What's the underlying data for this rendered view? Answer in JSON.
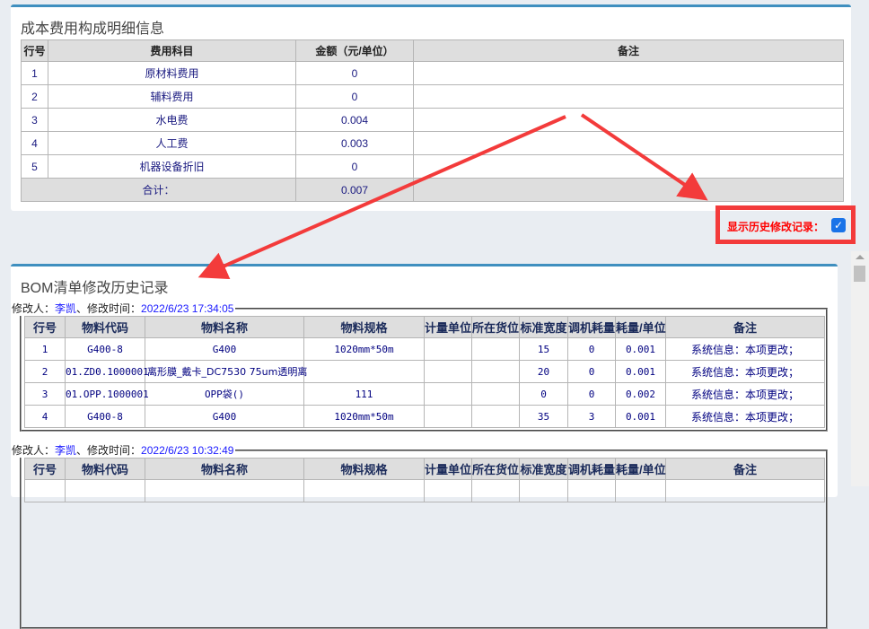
{
  "cost_panel": {
    "title": "成本费用构成明细信息",
    "headers": [
      "行号",
      "费用科目",
      "金额（元/单位）",
      "备注"
    ],
    "rows": [
      {
        "no": "1",
        "item": "原材料费用",
        "amount": "0",
        "note": ""
      },
      {
        "no": "2",
        "item": "辅料费用",
        "amount": "0",
        "note": ""
      },
      {
        "no": "3",
        "item": "水电费",
        "amount": "0.004",
        "note": ""
      },
      {
        "no": "4",
        "item": "人工费",
        "amount": "0.003",
        "note": ""
      },
      {
        "no": "5",
        "item": "机器设备折旧",
        "amount": "0",
        "note": ""
      }
    ],
    "total_label": "合计：",
    "total_amount": "0.007"
  },
  "show_history": {
    "label": "显示历史修改记录：",
    "checked": true,
    "highlight_color": "#f33b3b"
  },
  "bom_panel": {
    "title": "BOM清单修改历史记录",
    "headers": [
      "行号",
      "物料代码",
      "物料名称",
      "物料规格",
      "计量单位",
      "所在货位",
      "标准宽度",
      "调机耗量",
      "耗量/单位",
      "备注"
    ],
    "records": [
      {
        "modifier_label": "修改人：",
        "modifier": "李凯",
        "time_label": "、修改时间：",
        "time": "2022/6/23 17:34:05",
        "rows": [
          [
            "1",
            "G400-8",
            "G400",
            "1020mm*50m",
            "",
            "",
            "15",
            "0",
            "0.001",
            "系统信息：本项更改；"
          ],
          [
            "2",
            "01.ZD0.1000001",
            "离形膜_戴卡_DC7530 75um透明离",
            "",
            "",
            "",
            "20",
            "0",
            "0.001",
            "系统信息：本项更改；"
          ],
          [
            "3",
            "01.OPP.1000001",
            "OPP袋()",
            "111",
            "",
            "",
            "0",
            "0",
            "0.002",
            "系统信息：本项更改；"
          ],
          [
            "4",
            "G400-8",
            "G400",
            "1020mm*50m",
            "",
            "",
            "35",
            "3",
            "0.001",
            "系统信息：本项更改；"
          ]
        ]
      },
      {
        "modifier_label": "修改人：",
        "modifier": "李凯",
        "time_label": "、修改时间：",
        "time": "2022/6/23 10:32:49",
        "rows": []
      }
    ]
  },
  "accent_color": "#3f8fbf"
}
